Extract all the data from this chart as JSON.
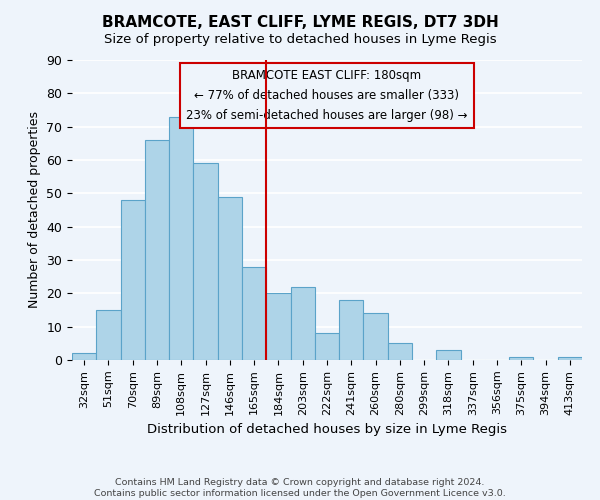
{
  "title": "BRAMCOTE, EAST CLIFF, LYME REGIS, DT7 3DH",
  "subtitle": "Size of property relative to detached houses in Lyme Regis",
  "xlabel": "Distribution of detached houses by size in Lyme Regis",
  "ylabel": "Number of detached properties",
  "footnote1": "Contains HM Land Registry data © Crown copyright and database right 2024.",
  "footnote2": "Contains public sector information licensed under the Open Government Licence v3.0.",
  "bin_labels": [
    "32sqm",
    "51sqm",
    "70sqm",
    "89sqm",
    "108sqm",
    "127sqm",
    "146sqm",
    "165sqm",
    "184sqm",
    "203sqm",
    "222sqm",
    "241sqm",
    "260sqm",
    "280sqm",
    "299sqm",
    "318sqm",
    "337sqm",
    "356sqm",
    "375sqm",
    "394sqm",
    "413sqm"
  ],
  "bar_values": [
    2,
    15,
    48,
    66,
    73,
    59,
    49,
    28,
    20,
    22,
    8,
    18,
    14,
    5,
    0,
    3,
    0,
    0,
    1,
    0,
    1
  ],
  "bar_color": "#aed4e8",
  "bar_edge_color": "#5ba3c9",
  "vline_bin_index": 8,
  "vline_color": "#cc0000",
  "ylim": [
    0,
    90
  ],
  "yticks": [
    0,
    10,
    20,
    30,
    40,
    50,
    60,
    70,
    80,
    90
  ],
  "annotation_title": "BRAMCOTE EAST CLIFF: 180sqm",
  "annotation_line1": "← 77% of detached houses are smaller (333)",
  "annotation_line2": "23% of semi-detached houses are larger (98) →",
  "background_color": "#eef4fb"
}
